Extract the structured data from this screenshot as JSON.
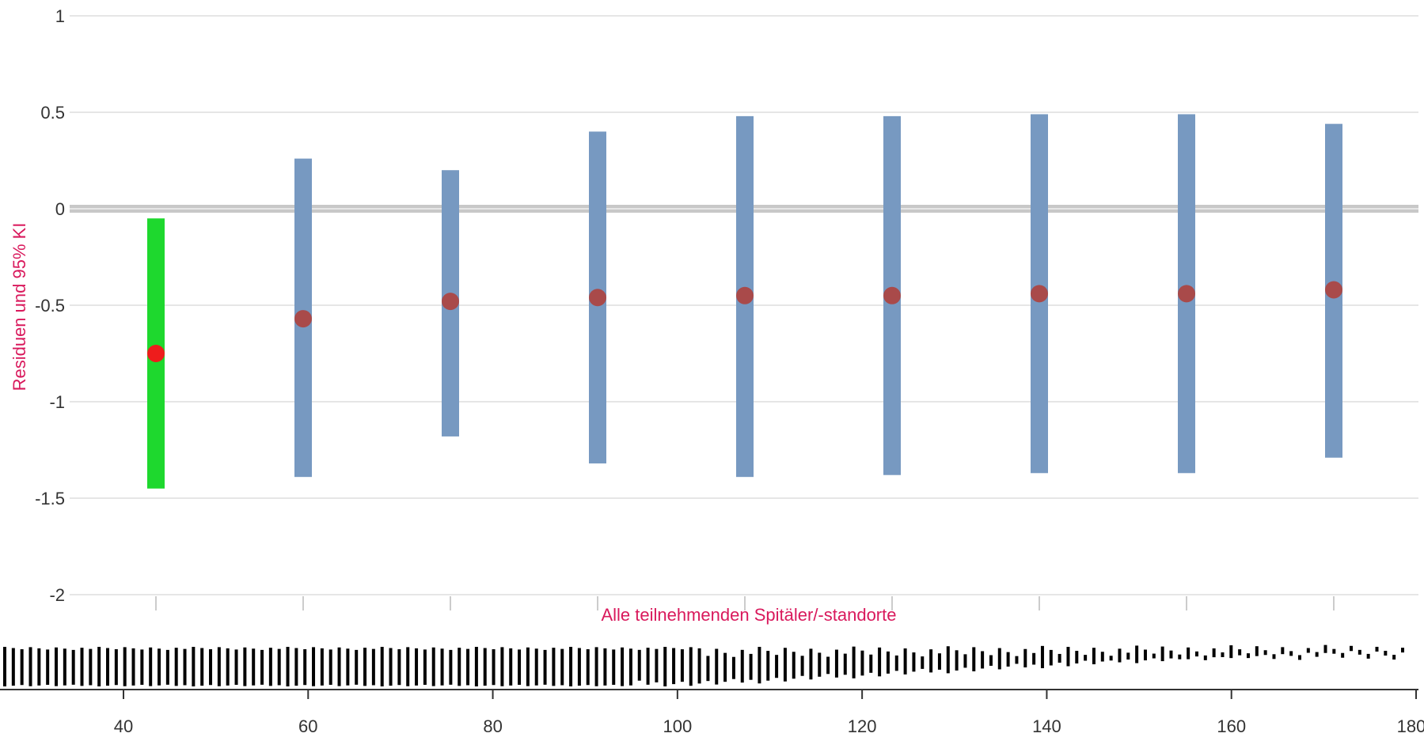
{
  "chart_data": {
    "type": "errorbar",
    "ylabel": "Residuen und 95% KI",
    "xlabel": "Alle teilnehmenden Spitäler/-standorte",
    "ylim": [
      -2,
      1
    ],
    "y_ticks": [
      "1",
      "0.5",
      "0",
      "-0.5",
      "-1",
      "-1.5",
      "-2"
    ],
    "y_tick_values": [
      1,
      0.5,
      0,
      -0.5,
      -1,
      -1.5,
      -2
    ],
    "reference_line": 0,
    "grid": true,
    "highlight_color": "#1ed82e",
    "highlight_point_color": "#ee1c1c",
    "bar_color": "#7799c1",
    "point_color": "#a94a4a",
    "title_color": "#d9195c",
    "points": [
      {
        "value": -0.75,
        "lower": -1.45,
        "upper": -0.05,
        "highlight": true
      },
      {
        "value": -0.57,
        "lower": -1.39,
        "upper": 0.26,
        "highlight": false
      },
      {
        "value": -0.48,
        "lower": -1.18,
        "upper": 0.2,
        "highlight": false
      },
      {
        "value": -0.46,
        "lower": -1.32,
        "upper": 0.4,
        "highlight": false
      },
      {
        "value": -0.45,
        "lower": -1.39,
        "upper": 0.48,
        "highlight": false
      },
      {
        "value": -0.45,
        "lower": -1.38,
        "upper": 0.48,
        "highlight": false
      },
      {
        "value": -0.44,
        "lower": -1.37,
        "upper": 0.49,
        "highlight": false
      },
      {
        "value": -0.44,
        "lower": -1.37,
        "upper": 0.49,
        "highlight": false
      },
      {
        "value": -0.42,
        "lower": -1.29,
        "upper": 0.44,
        "highlight": false
      }
    ],
    "navigator": {
      "x_ticks": [
        "40",
        "60",
        "80",
        "100",
        "120",
        "140",
        "160",
        "180"
      ],
      "x_tick_values": [
        40,
        60,
        80,
        100,
        120,
        140,
        160,
        180
      ],
      "x_range": [
        26,
        180
      ]
    }
  }
}
